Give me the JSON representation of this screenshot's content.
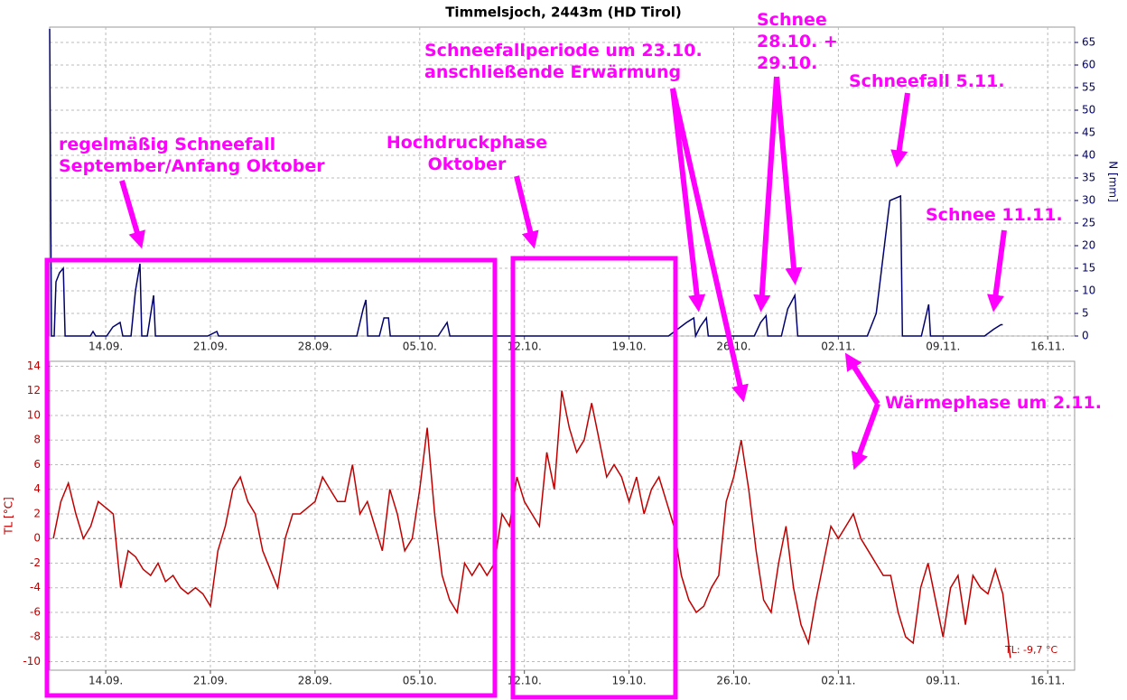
{
  "chart_data": [
    {
      "type": "line",
      "title": "Timmelsjoch, 2443m (HD Tirol)",
      "y_label": "N [mm]",
      "grid": true,
      "y_side": "right",
      "xlim": [
        253.25,
        321.8
      ],
      "xticks": [
        {
          "value": 257,
          "label": "14.09."
        },
        {
          "value": 264,
          "label": "21.09."
        },
        {
          "value": 271,
          "label": "28.09."
        },
        {
          "value": 278,
          "label": "05.10."
        },
        {
          "value": 285,
          "label": "12.10."
        },
        {
          "value": 292,
          "label": "19.10."
        },
        {
          "value": 299,
          "label": "26.10."
        },
        {
          "value": 306,
          "label": "02.11."
        },
        {
          "value": 313,
          "label": "09.11."
        },
        {
          "value": 320,
          "label": "16.11."
        }
      ],
      "ylim": [
        0,
        68.4
      ],
      "yticks": [
        0,
        5,
        10,
        15,
        20,
        25,
        30,
        35,
        40,
        45,
        50,
        55,
        60,
        65
      ],
      "x": [
        253.25,
        253.37,
        253.55,
        253.67,
        253.91,
        254.16,
        254.28,
        255.97,
        256.15,
        256.33,
        257.06,
        257.48,
        257.96,
        258.14,
        258.69,
        258.99,
        259.29,
        259.41,
        259.78,
        260.2,
        260.32,
        263.82,
        264.43,
        264.55,
        273.79,
        274.22,
        274.4,
        274.52,
        275.3,
        275.61,
        275.91,
        276.03,
        279.23,
        279.83,
        280.02,
        294.64,
        295.85,
        296.33,
        296.45,
        296.75,
        297.17,
        297.3,
        300.38,
        300.8,
        301.16,
        301.28,
        302.19,
        302.61,
        303.09,
        303.28,
        307.93,
        308.53,
        309.44,
        310.16,
        310.28,
        311.55,
        312.04,
        312.16,
        315.78,
        316.39,
        316.87,
        316.99
      ],
      "series": [
        {
          "color": "#00006e",
          "values": [
            68,
            0,
            0,
            12,
            14,
            15,
            0,
            0,
            1,
            0,
            0,
            2,
            3,
            0,
            0,
            10,
            16,
            0,
            0,
            9,
            0,
            0,
            1,
            0,
            0,
            6,
            8,
            0,
            0,
            4,
            4,
            0,
            0,
            3,
            0,
            0,
            3,
            4,
            0,
            2,
            4,
            0,
            0,
            3,
            4.5,
            0,
            0,
            6,
            9,
            0,
            0,
            5,
            30,
            31,
            0,
            0,
            7,
            0,
            0,
            1.5,
            2.5,
            2.5
          ]
        }
      ]
    },
    {
      "type": "line",
      "y_label": "TL [°C]",
      "grid": true,
      "y_side": "left",
      "annotation": "TL: -9,7 °C",
      "xlim": [
        253.25,
        321.8
      ],
      "xticks": [
        {
          "value": 257,
          "label": "14.09."
        },
        {
          "value": 264,
          "label": "21.09."
        },
        {
          "value": 271,
          "label": "28.09."
        },
        {
          "value": 278,
          "label": "05.10."
        },
        {
          "value": 285,
          "label": "12.10."
        },
        {
          "value": 292,
          "label": "19.10."
        },
        {
          "value": 299,
          "label": "26.10."
        },
        {
          "value": 306,
          "label": "02.11."
        },
        {
          "value": 313,
          "label": "09.11."
        },
        {
          "value": 320,
          "label": "16.11."
        }
      ],
      "ylim": [
        -10.7,
        14.4
      ],
      "yticks": [
        14,
        12,
        10,
        8,
        6,
        4,
        2,
        0,
        -2,
        -4,
        -6,
        -8,
        -10
      ],
      "x": [
        253.5,
        254,
        254.5,
        255,
        255.5,
        256,
        256.5,
        257,
        257.5,
        258,
        258.5,
        259,
        259.5,
        260,
        260.5,
        261,
        261.5,
        262,
        262.5,
        263,
        263.5,
        264,
        264.5,
        265,
        265.5,
        266,
        266.5,
        267,
        267.5,
        268,
        268.5,
        269,
        269.5,
        270,
        270.5,
        271,
        271.5,
        272,
        272.5,
        273,
        273.5,
        274,
        274.5,
        275,
        275.5,
        276,
        276.5,
        277,
        277.5,
        278,
        278.5,
        279,
        279.5,
        280,
        280.5,
        281,
        281.5,
        282,
        282.5,
        283,
        283.5,
        284,
        284.5,
        285,
        285.5,
        286,
        286.5,
        287,
        287.5,
        288,
        288.5,
        289,
        289.5,
        290,
        290.5,
        291,
        291.5,
        292,
        292.5,
        293,
        293.5,
        294,
        294.5,
        295,
        295.5,
        296,
        296.5,
        297,
        297.5,
        298,
        298.5,
        299,
        299.5,
        300,
        300.5,
        301,
        301.5,
        302,
        302.5,
        303,
        303.5,
        304,
        304.5,
        305,
        305.5,
        306,
        306.5,
        307,
        307.5,
        308,
        308.5,
        309,
        309.5,
        310,
        310.5,
        311,
        311.5,
        312,
        312.5,
        313,
        313.5,
        314,
        314.5,
        315,
        315.5,
        316,
        316.5,
        317,
        317.5
      ],
      "series": [
        {
          "color": "#c00000",
          "values": [
            0,
            3,
            4.5,
            2,
            0,
            1,
            3,
            2.5,
            2,
            -4,
            -1,
            -1.5,
            -2.5,
            -3,
            -2,
            -3.5,
            -3,
            -4,
            -4.5,
            -4,
            -4.5,
            -5.5,
            -1,
            1,
            4,
            5,
            3,
            2,
            -1,
            -2.5,
            -4,
            0,
            2,
            2,
            2.5,
            3,
            5,
            4,
            3,
            3,
            6,
            2,
            3,
            1,
            -1,
            4,
            2,
            -1,
            0,
            4,
            9,
            2,
            -3,
            -5,
            -6,
            -2,
            -3,
            -2,
            -3,
            -2,
            2,
            1,
            5,
            3,
            2,
            1,
            7,
            4,
            12,
            9,
            7,
            8,
            11,
            8,
            5,
            6,
            5,
            3,
            5,
            2,
            4,
            5,
            3,
            1,
            -3,
            -5,
            -6,
            -5.5,
            -4,
            -3,
            3,
            5,
            8,
            4,
            -1,
            -5,
            -6,
            -2,
            1,
            -4,
            -7,
            -8.5,
            -5,
            -2,
            1,
            0,
            1,
            2,
            0,
            -1,
            -2,
            -3,
            -3,
            -6,
            -8,
            -8.5,
            -4,
            -2,
            -5,
            -8,
            -4,
            -3,
            -7,
            -3,
            -4,
            -4.5,
            -2.5,
            -4.5,
            -9.7
          ]
        }
      ]
    }
  ],
  "annotations": [
    [
      "regelmäßig Schneefall",
      "September/Anfang Oktober"
    ],
    [
      "Hochdruckphase",
      "Oktober"
    ],
    [
      "Schneefallperiode um 23.10.",
      "anschließende Erwärmung"
    ],
    [
      "Schnee",
      "28.10. +",
      "29.10."
    ],
    [
      "Schneefall 5.11."
    ],
    [
      "Schnee 11.11."
    ],
    [
      "Wärmephase um 2.11."
    ]
  ]
}
